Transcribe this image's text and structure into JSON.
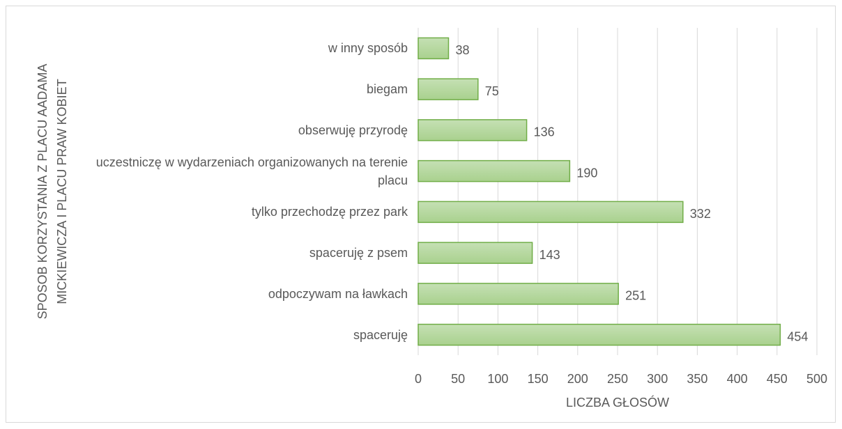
{
  "chart_data": {
    "type": "bar",
    "orientation": "horizontal",
    "y_label": [
      "SPOSOB KORZYSTANIA Z PLACU AADAMA",
      "MICKIEWICZA I PLACU PRAW KOBIET"
    ],
    "x_label": "LICZBA GŁOSÓW",
    "categories": [
      "spaceruję",
      "odpoczywam na ławkach",
      "spaceruję z psem",
      "tylko przechodzę przez park",
      "uczestniczę w wydarzeniach organizowanych na terenie placu",
      "obserwuję przyrodę",
      "biegam",
      "w inny sposób"
    ],
    "values": [
      454,
      251,
      143,
      332,
      190,
      136,
      75,
      38
    ],
    "color": "#a9d18e",
    "edge_color": "#70ad47",
    "xlim": [
      0,
      500
    ],
    "xticks": [
      0,
      50,
      100,
      150,
      200,
      250,
      300,
      350,
      400,
      450,
      500
    ],
    "grid": true
  }
}
